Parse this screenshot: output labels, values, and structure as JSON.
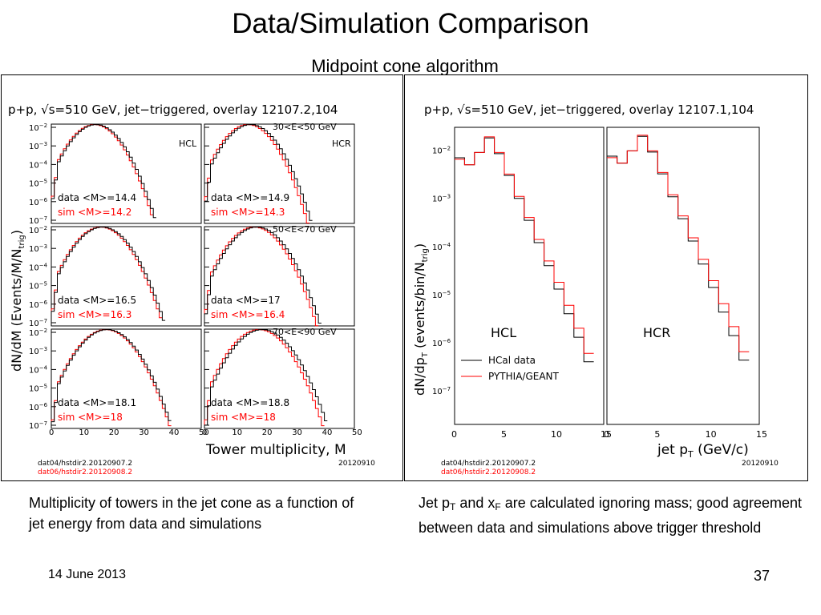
{
  "slide": {
    "title": "Data/Simulation Comparison",
    "subtitle": "Midpoint cone algorithm",
    "date": "14 June 2013",
    "page": "37"
  },
  "captions": {
    "left": "Multiplicity of towers in the jet cone as a function of jet energy from data and simulations",
    "right_p1": "Jet p",
    "right_sub1": "T",
    "right_p2": " and x",
    "right_sub2": "F",
    "right_p3": " are calculated ignoring mass; good agreement between data and simulations above trigger threshold"
  },
  "colors": {
    "data": "#000000",
    "sim": "#ff0000"
  },
  "chart_data": [
    {
      "type": "line",
      "title": "p+p, √s=510 GeV, jet−triggered, overlay 12107.2,104",
      "xlabel": "Tower multiplicity, M",
      "ylabel": "dN/dM (Events/M/N",
      "ylabel_sub": "trig",
      "ylabel_end": ")",
      "x_ticks": [
        "0",
        "10",
        "20",
        "30",
        "40",
        "50"
      ],
      "y_ticks": [
        "10",
        "10",
        "10",
        "10",
        "10",
        "10"
      ],
      "y_exps": [
        "−2",
        "−3",
        "−4",
        "−5",
        "−6",
        "−7"
      ],
      "xlim": [
        0,
        50
      ],
      "log_y": true,
      "ylim": [
        1e-07,
        0.01
      ],
      "footnote_data": "dat04/hstdir2.20120907.2",
      "footnote_sim": "dat06/hstdir2.20120908.2",
      "footnote_date": "20120910",
      "panels": [
        {
          "row": 0,
          "side": "HCL",
          "energy": "",
          "data_label": "data <M>=14.4",
          "sim_label": "sim  <M>=14.2",
          "data_mean": 14.4,
          "sim_mean": 14.2
        },
        {
          "row": 0,
          "side": "HCR",
          "energy": "30<E<50 GeV",
          "data_label": "data <M>=14.9",
          "sim_label": "sim  <M>=14.3",
          "data_mean": 14.9,
          "sim_mean": 14.3
        },
        {
          "row": 1,
          "side": "",
          "energy": "",
          "data_label": "data <M>=16.5",
          "sim_label": "sim  <M>=16.3",
          "data_mean": 16.5,
          "sim_mean": 16.3
        },
        {
          "row": 1,
          "side": "",
          "energy": "50<E<70 GeV",
          "data_label": "data <M>=17",
          "sim_label": "sim  <M>=16.4",
          "data_mean": 17.0,
          "sim_mean": 16.4
        },
        {
          "row": 2,
          "side": "",
          "energy": "",
          "data_label": "data <M>=18.1",
          "sim_label": "sim  <M>=18",
          "data_mean": 18.1,
          "sim_mean": 18.0
        },
        {
          "row": 2,
          "side": "",
          "energy": "70<E<90 GeV",
          "data_label": "data <M>=18.8",
          "sim_label": "sim  <M>=18",
          "data_mean": 18.8,
          "sim_mean": 18.0
        }
      ]
    },
    {
      "type": "line",
      "title": "p+p, √s=510 GeV, jet−triggered, overlay 12107.1,104",
      "xlabel": "jet p",
      "xlabel_sub": "T",
      "xlabel_end": " (GeV/c)",
      "ylabel": "dN/dp",
      "ylabel_sub": "T",
      "ylabel_end": " (events/bin/N",
      "ylabel_sub2": "trig",
      "ylabel_end2": ")",
      "x_ticks": [
        "0",
        "5",
        "10",
        "15"
      ],
      "y_ticks": [
        "10",
        "10",
        "10",
        "10",
        "10",
        "10"
      ],
      "y_exps": [
        "−2",
        "−3",
        "−4",
        "−5",
        "−6",
        "−7"
      ],
      "xlim": [
        0,
        15
      ],
      "log_y": true,
      "ylim": [
        2e-08,
        0.03
      ],
      "panel_labels": [
        "HCL",
        "HCR"
      ],
      "legend": [
        "HCal data",
        "PYTHIA/GEANT"
      ],
      "legend_position": "bottom-left of HCL panel",
      "footnote_data": "dat04/hstdir2.20120907.2",
      "footnote_sim": "dat06/hstdir2.20120908.2",
      "footnote_date": "20120910",
      "series": [
        {
          "name": "HCal data",
          "x": [
            0,
            1,
            2,
            3,
            4,
            5,
            6,
            7,
            8,
            9,
            10,
            11,
            12,
            13
          ],
          "y": [
            0.007,
            0.005,
            0.009,
            0.018,
            0.0085,
            0.003,
            0.001,
            0.00035,
            0.00012,
            4e-05,
            1.3e-05,
            4e-06,
            1.3e-06,
            4e-07
          ]
        },
        {
          "name": "PYTHIA/GEANT",
          "x": [
            0,
            1,
            2,
            3,
            4,
            5,
            6,
            7,
            8,
            9,
            10,
            11,
            12,
            13
          ],
          "y": [
            0.0065,
            0.005,
            0.009,
            0.019,
            0.009,
            0.0032,
            0.0011,
            0.0004,
            0.00014,
            5e-05,
            1.8e-05,
            6e-06,
            2e-06,
            6e-07
          ]
        }
      ]
    }
  ]
}
